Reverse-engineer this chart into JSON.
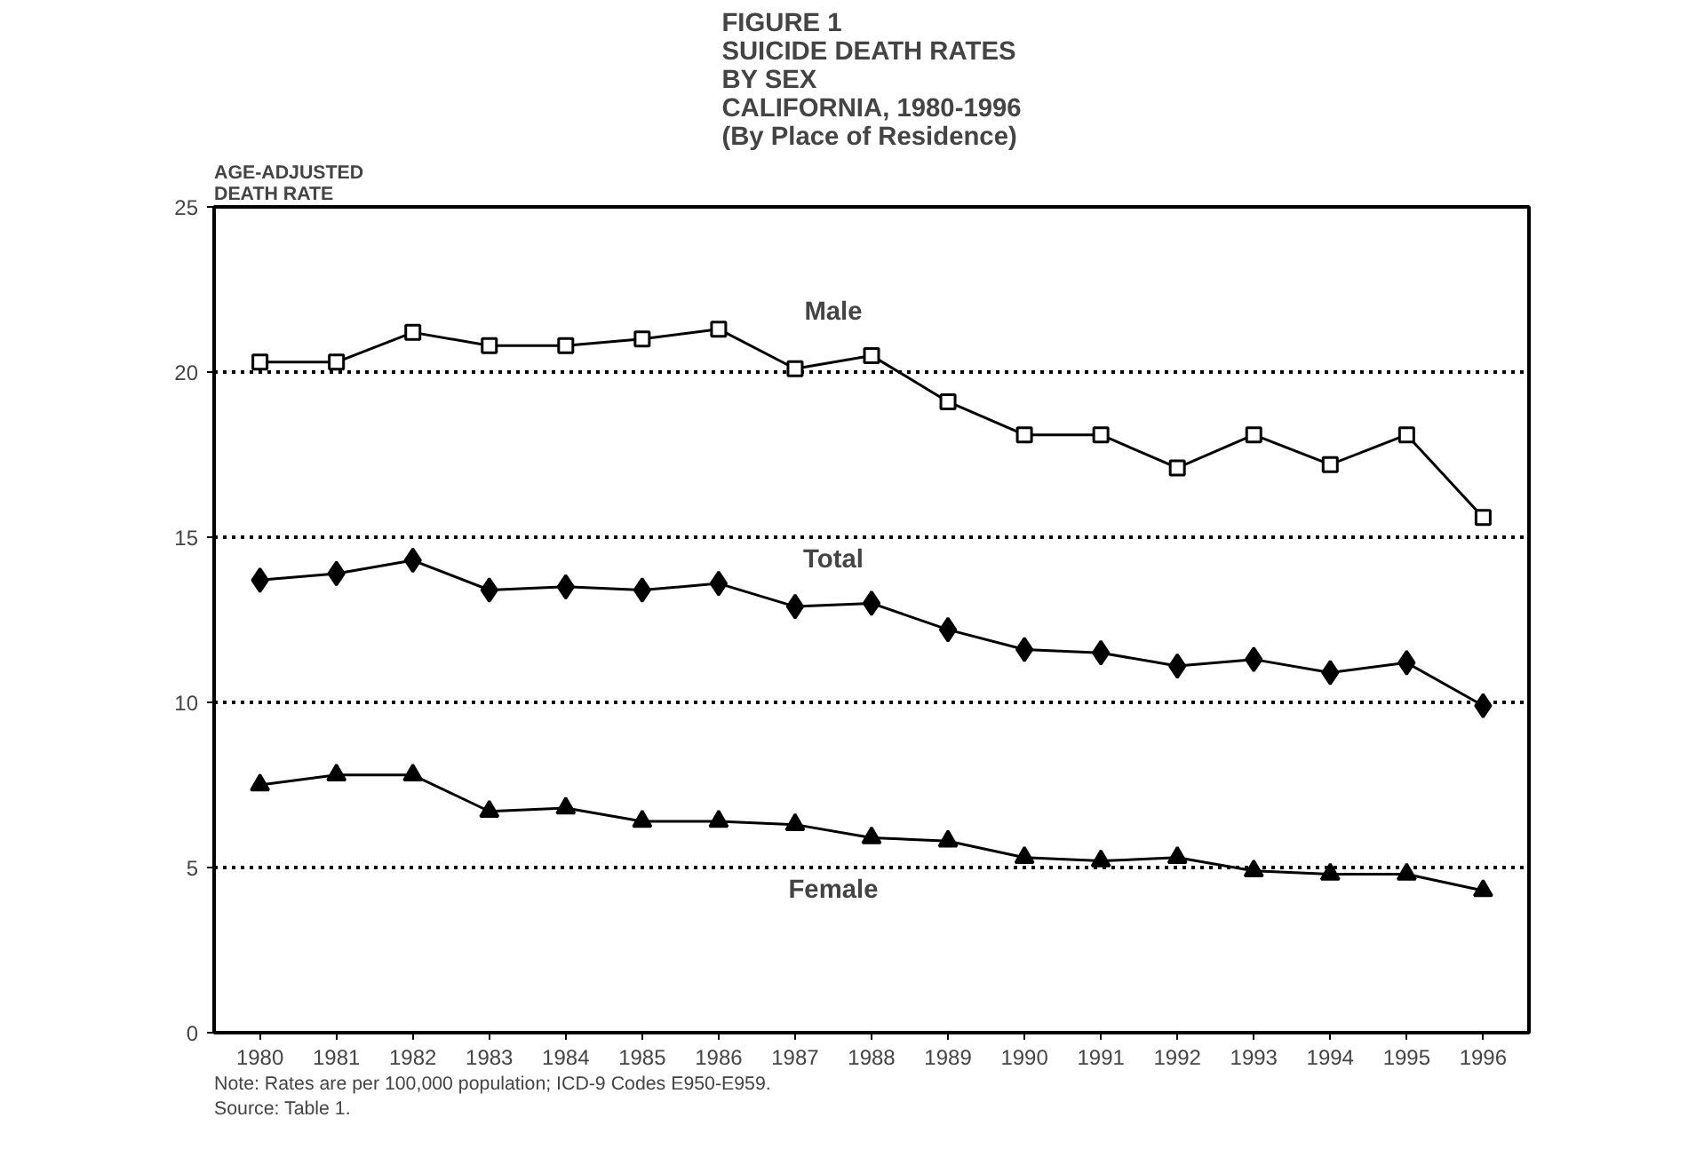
{
  "chart_data": {
    "type": "line",
    "title": "FIGURE 1\nSUICIDE DEATH RATES\nBY SEX\nCALIFORNIA, 1980-1996\n(By Place of Residence)",
    "ylabel": "AGE-ADJUSTED\nDEATH RATE",
    "categories": [
      "1980",
      "1981",
      "1982",
      "1983",
      "1984",
      "1985",
      "1986",
      "1987",
      "1988",
      "1989",
      "1990",
      "1991",
      "1992",
      "1993",
      "1994",
      "1995",
      "1996"
    ],
    "series": [
      {
        "name": "Male",
        "color": "#000000",
        "marker": "square",
        "values": [
          20.3,
          20.3,
          21.2,
          20.8,
          20.8,
          21.0,
          21.3,
          20.1,
          20.5,
          19.1,
          18.1,
          18.1,
          17.1,
          18.1,
          17.2,
          18.1,
          15.6
        ]
      },
      {
        "name": "Total",
        "color": "#000000",
        "marker": "diamond",
        "values": [
          13.7,
          13.9,
          14.3,
          13.4,
          13.5,
          13.4,
          13.6,
          12.9,
          13.0,
          12.2,
          11.6,
          11.5,
          11.1,
          11.3,
          10.9,
          11.2,
          9.9
        ]
      },
      {
        "name": "Female",
        "color": "#000000",
        "marker": "triangle",
        "values": [
          7.5,
          7.8,
          7.8,
          6.7,
          6.8,
          6.4,
          6.4,
          6.3,
          5.9,
          5.8,
          5.3,
          5.2,
          5.3,
          4.9,
          4.8,
          4.8,
          4.3
        ]
      }
    ],
    "ylim": [
      0,
      25
    ],
    "yticks": [
      0,
      5,
      10,
      15,
      20,
      25
    ],
    "grid": "y",
    "legend": false,
    "line_style": "solid",
    "annotations": [
      "Note:  Rates are per 100,000 population; ICD-9 Codes E950-E959.",
      "Source:  Table 1."
    ]
  }
}
